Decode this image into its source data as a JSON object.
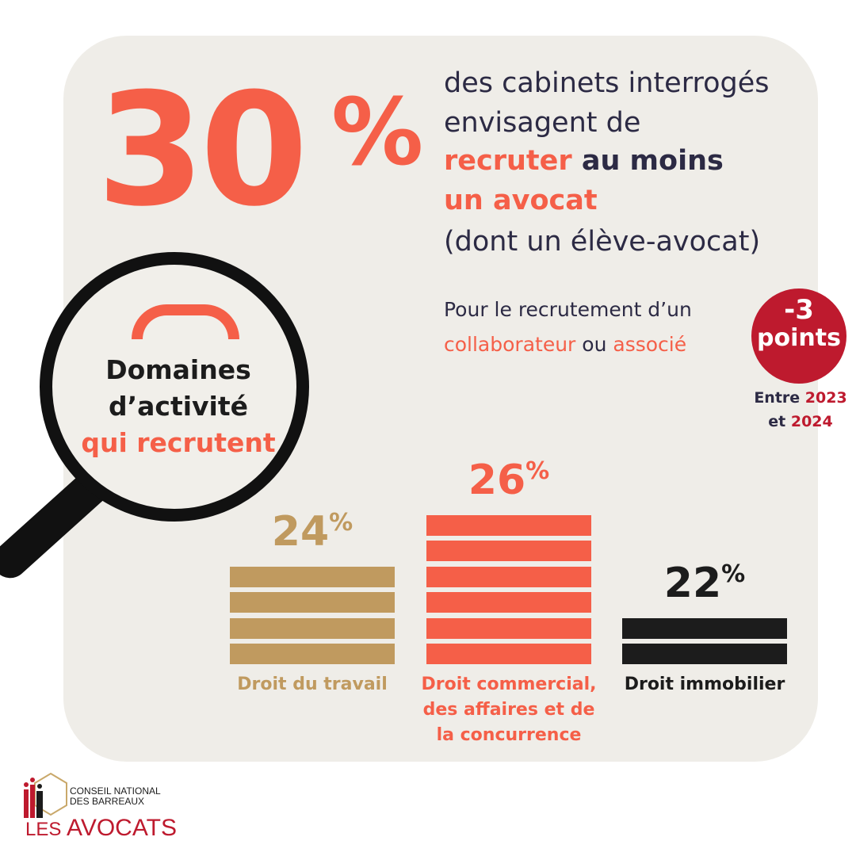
{
  "headline": {
    "number": "30",
    "percent_sign": "%",
    "line1": "des cabinets interrogés",
    "line2": "envisagent de",
    "line3_a": "recruter",
    "line3_b": " au moins",
    "line4": "un avocat",
    "line5": "(dont un élève-avocat)"
  },
  "recruitment_note": {
    "line1": "Pour le recrutement d’un",
    "word1": "collaborateur",
    "middle": " ou ",
    "word2": "associé"
  },
  "change_badge": {
    "value": "-3",
    "unit": "points",
    "prefix": "Entre",
    "year_start": "2023",
    "joiner": "et",
    "year_end": "2024"
  },
  "magnifier": {
    "line1": "Domaines",
    "line2": "d’activité",
    "line3": "qui recrutent"
  },
  "chart_data": {
    "type": "bar",
    "categories": [
      "Droit du travail",
      "Droit commercial, des affaires et de la concurrence",
      "Droit immobilier"
    ],
    "values": [
      24,
      26,
      22
    ],
    "value_labels": [
      "24",
      "26",
      "22"
    ],
    "unit": "%",
    "colors": [
      "#c09a5f",
      "#f55f48",
      "#1c1c1c"
    ],
    "stripes": [
      4,
      6,
      2
    ],
    "label_lines": [
      [
        "Droit du travail"
      ],
      [
        "Droit commercial,",
        "des affaires et de",
        "la concurrence"
      ],
      [
        "Droit immobilier"
      ]
    ],
    "grid": false,
    "legend": "none"
  },
  "logo": {
    "line1": "CONSEIL NATIONAL",
    "line2": "DES BARREAUX",
    "brand_a": "LES",
    "brand_b": " AVOCATS"
  },
  "colors": {
    "accent": "#f55f48",
    "navy": "#2c2a44",
    "crimson": "#be1a2e",
    "card": "#efede8",
    "gold": "#c09a5f"
  }
}
